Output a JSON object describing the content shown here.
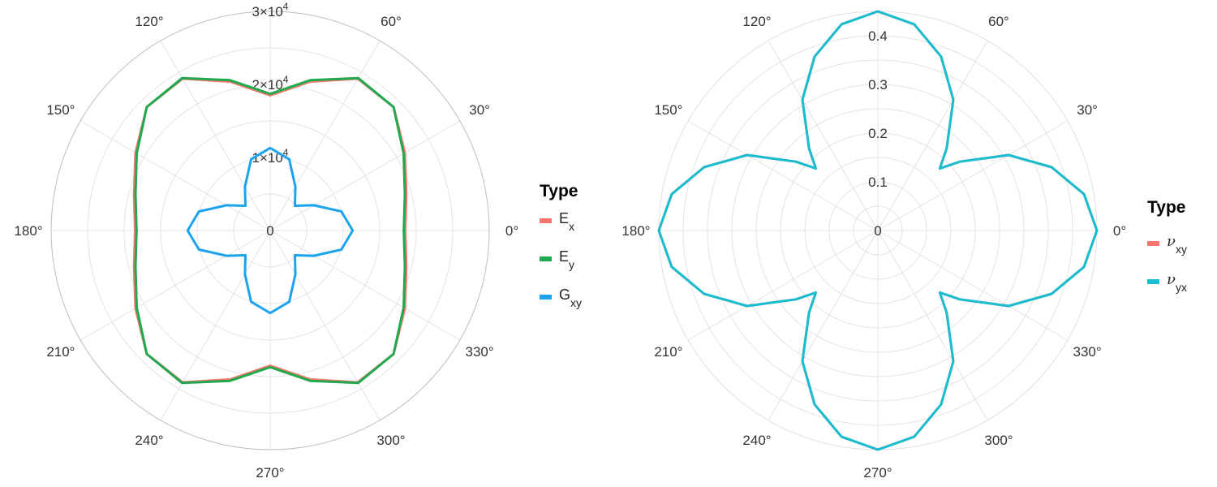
{
  "chart_data": [
    {
      "type": "line",
      "coordinate_system": "polar",
      "theta_unit": "degrees",
      "theta_ticks": [
        "0°",
        "30°",
        "60°",
        "90°",
        "120°",
        "150°",
        "180°",
        "210°",
        "240°",
        "270°",
        "300°",
        "330°"
      ],
      "radial_ticks": [
        {
          "value": 0,
          "label": "0"
        },
        {
          "value": 10000,
          "mantissa": "1",
          "exponent": "4"
        },
        {
          "value": 20000,
          "mantissa": "2",
          "exponent": "4"
        },
        {
          "value": 30000,
          "mantissa": "3",
          "exponent": "4"
        }
      ],
      "rlim": [
        0,
        30000
      ],
      "grid": true,
      "legend": {
        "title": "Type",
        "position": "right"
      },
      "theta": [
        0,
        15,
        30,
        45,
        60,
        75,
        90,
        105,
        120,
        135,
        150,
        165,
        180,
        195,
        210,
        225,
        240,
        255,
        270,
        285,
        300,
        315,
        330,
        345,
        360
      ],
      "series": [
        {
          "name": "E",
          "sub": "x",
          "color": "#F8766D",
          "values": [
            18500,
            19300,
            21300,
            23900,
            24000,
            21100,
            18500,
            21100,
            24000,
            23900,
            21300,
            19300,
            18500,
            19300,
            21300,
            23900,
            24000,
            21100,
            18500,
            21100,
            24000,
            23900,
            21300,
            19300,
            18500
          ]
        },
        {
          "name": "E",
          "sub": "y",
          "color": "#1FAA50",
          "values": [
            18300,
            19100,
            21100,
            23900,
            24100,
            21300,
            18700,
            21300,
            24100,
            23900,
            21100,
            19100,
            18300,
            19100,
            21100,
            23900,
            24100,
            21300,
            18700,
            21300,
            24100,
            23900,
            21100,
            19100,
            18300
          ]
        },
        {
          "name": "G",
          "sub": "xy",
          "color": "#1CA3EC",
          "values": [
            11300,
            10100,
            6900,
            4800,
            6900,
            10100,
            11300,
            10100,
            6900,
            4800,
            6900,
            10100,
            11300,
            10100,
            6900,
            4800,
            6900,
            10100,
            11300,
            10100,
            6900,
            4800,
            6900,
            10100,
            11300
          ]
        }
      ]
    },
    {
      "type": "line",
      "coordinate_system": "polar",
      "theta_unit": "degrees",
      "theta_ticks": [
        "0°",
        "30°",
        "60°",
        "90°",
        "120°",
        "150°",
        "180°",
        "210°",
        "240°",
        "270°",
        "300°",
        "330°"
      ],
      "radial_ticks": [
        {
          "value": 0,
          "label": "0"
        },
        {
          "value": 0.1,
          "label": "0.1"
        },
        {
          "value": 0.2,
          "label": "0.2"
        },
        {
          "value": 0.3,
          "label": "0.3"
        },
        {
          "value": 0.4,
          "label": "0.4"
        }
      ],
      "rlim": [
        0,
        0.45
      ],
      "grid": true,
      "legend": {
        "title": "Type",
        "position": "right"
      },
      "theta": [
        0,
        10,
        20,
        30,
        40,
        45,
        50,
        60,
        70,
        80,
        90,
        100,
        110,
        120,
        130,
        135,
        140,
        150,
        160,
        170,
        180,
        190,
        200,
        210,
        220,
        225,
        230,
        240,
        250,
        260,
        270,
        280,
        290,
        300,
        310,
        315,
        320,
        330,
        340,
        350,
        360
      ],
      "series": [
        {
          "name": "ν",
          "sub": "xy",
          "color": "#F8766D",
          "values": [
            0.45,
            0.43,
            0.38,
            0.31,
            0.22,
            0.18,
            0.22,
            0.31,
            0.38,
            0.43,
            0.45,
            0.43,
            0.38,
            0.31,
            0.22,
            0.18,
            0.22,
            0.31,
            0.38,
            0.43,
            0.45,
            0.43,
            0.38,
            0.31,
            0.22,
            0.18,
            0.22,
            0.31,
            0.38,
            0.43,
            0.45,
            0.43,
            0.38,
            0.31,
            0.22,
            0.18,
            0.22,
            0.31,
            0.38,
            0.43,
            0.45
          ]
        },
        {
          "name": "ν",
          "sub": "yx",
          "color": "#17BECF",
          "values": [
            0.45,
            0.43,
            0.38,
            0.31,
            0.22,
            0.18,
            0.22,
            0.31,
            0.38,
            0.43,
            0.45,
            0.43,
            0.38,
            0.31,
            0.22,
            0.18,
            0.22,
            0.31,
            0.38,
            0.43,
            0.45,
            0.43,
            0.38,
            0.31,
            0.22,
            0.18,
            0.22,
            0.31,
            0.38,
            0.43,
            0.45,
            0.43,
            0.38,
            0.31,
            0.22,
            0.18,
            0.22,
            0.31,
            0.38,
            0.43,
            0.45
          ]
        }
      ]
    }
  ]
}
